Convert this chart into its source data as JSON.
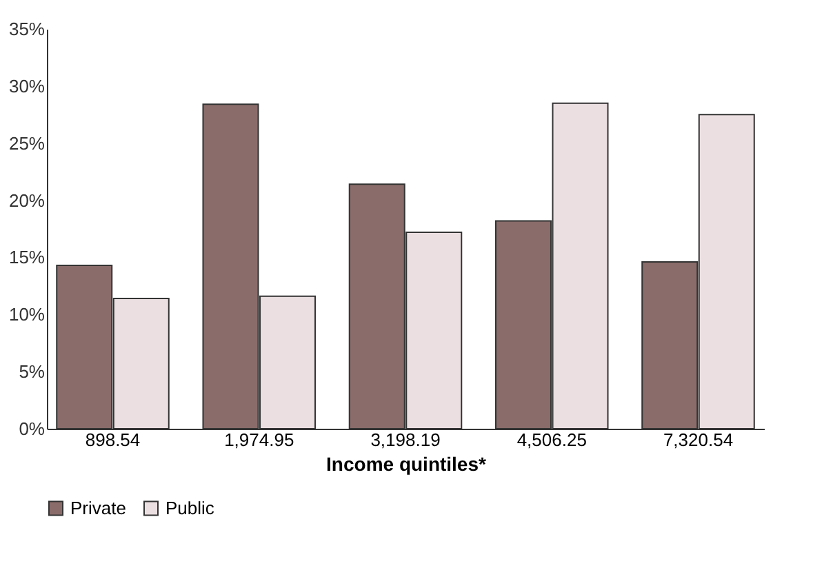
{
  "chart_data": {
    "type": "bar",
    "xlabel": "Income quintiles*",
    "categories": [
      "898.54",
      "1,974.95",
      "3,198.19",
      "4,506.25",
      "7,320.54"
    ],
    "series": [
      {
        "name": "Private",
        "color": "#8a6c6a",
        "values": [
          14.3,
          28.4,
          21.4,
          18.2,
          14.6
        ]
      },
      {
        "name": "Public",
        "color": "#ecdfe1",
        "values": [
          11.4,
          11.6,
          17.2,
          28.5,
          27.5
        ]
      }
    ],
    "ylim": [
      0,
      35
    ],
    "yticks": [
      {
        "value": 0,
        "label": "0%"
      },
      {
        "value": 5,
        "label": "5%"
      },
      {
        "value": 10,
        "label": "10%"
      },
      {
        "value": 15,
        "label": "15%"
      },
      {
        "value": 20,
        "label": "20%"
      },
      {
        "value": 25,
        "label": "25%"
      },
      {
        "value": 30,
        "label": "30%"
      },
      {
        "value": 35,
        "label": "35%"
      }
    ],
    "grid": false,
    "legend": "bottom"
  }
}
